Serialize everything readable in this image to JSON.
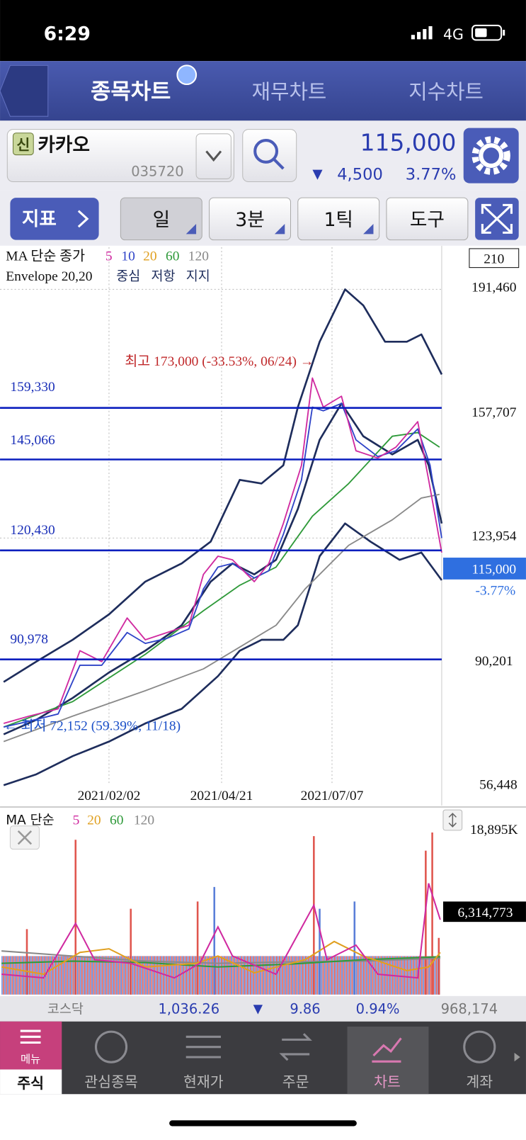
{
  "status_bar": {
    "time": "6:29",
    "network": "4G"
  },
  "tabs": [
    "종목차트",
    "재무차트",
    "지수차트"
  ],
  "stock": {
    "badge": "신",
    "name": "카카오",
    "code": "035720",
    "price": "115,000",
    "change_arrow": "▼",
    "change": "4,500",
    "change_pct": "3.77%"
  },
  "toolbar": {
    "indicator": "지표",
    "buttons": [
      "일",
      "3분",
      "1틱",
      "도구"
    ]
  },
  "chart": {
    "ma_label": "MA 단순 종가",
    "ma_periods": [
      "5",
      "10",
      "20",
      "60",
      "120"
    ],
    "envelope_label": "Envelope 20,20",
    "envelope_parts": [
      "중심",
      "저항",
      "지지"
    ],
    "period_box": "210",
    "price_labels": [
      "191,460",
      "157,707",
      "123,954",
      "90,201",
      "56,448"
    ],
    "current_price": "115,000",
    "current_change": "-3.77%",
    "levels": [
      "159,330",
      "145,066",
      "120,430",
      "90,978"
    ],
    "high_note": "최고 173,000 (-33.53%, 06/24) →",
    "low_note": "← 최저 72,152 (59.39%, 11/18)",
    "dates": [
      "2021/02/02",
      "2021/04/21",
      "2021/07/07"
    ]
  },
  "volume": {
    "ma_label": "MA 단순",
    "ma_periods": [
      "5",
      "20",
      "60",
      "120"
    ],
    "max_label": "18,895K",
    "current": "6,314,773"
  },
  "index_bar": {
    "name": "코스닥",
    "value": "1,036.26",
    "arrow": "▼",
    "change": "9.86",
    "pct": "0.94%",
    "volume": "968,174"
  },
  "nav": {
    "menu": "메뉴",
    "items": [
      "주식",
      "관심종목",
      "현재가",
      "주문",
      "차트",
      "계좌"
    ]
  }
}
